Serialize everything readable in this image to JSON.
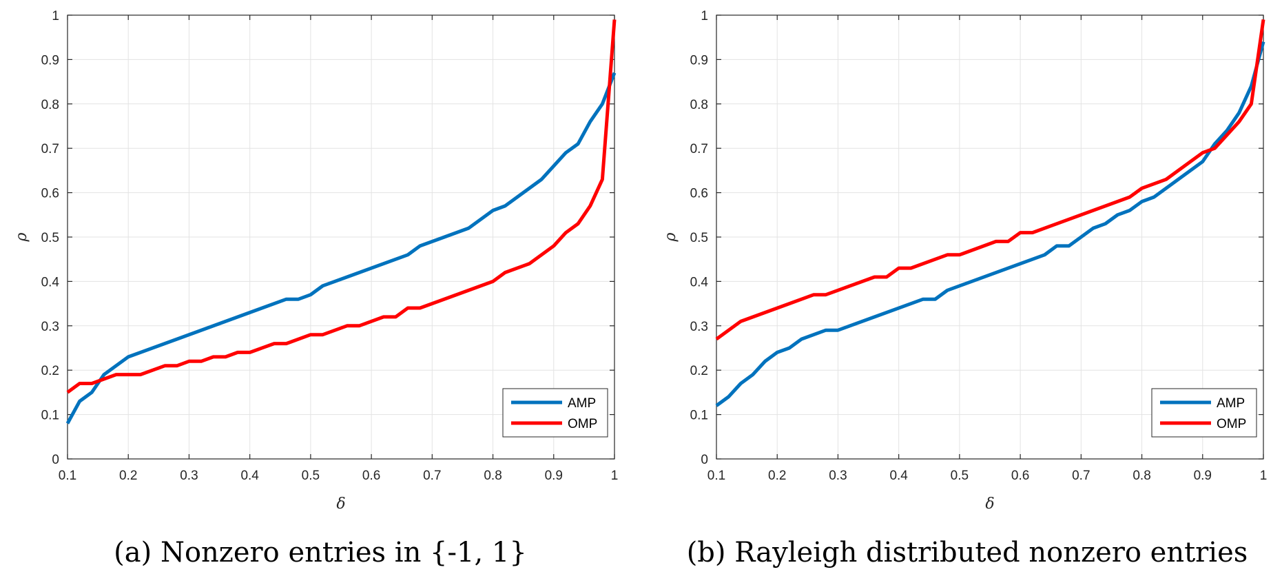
{
  "chart_data": [
    {
      "type": "line",
      "caption": "(a) Nonzero entries in {-1, 1}",
      "xlabel": "δ",
      "ylabel": "ρ",
      "xlim": [
        0.1,
        1
      ],
      "ylim": [
        0,
        1
      ],
      "xticks": [
        "0.1",
        "0.2",
        "0.3",
        "0.4",
        "0.5",
        "0.6",
        "0.7",
        "0.8",
        "0.9",
        "1"
      ],
      "yticks": [
        "0",
        "0.1",
        "0.2",
        "0.3",
        "0.4",
        "0.5",
        "0.6",
        "0.7",
        "0.8",
        "0.9",
        "1"
      ],
      "grid": true,
      "legend_position": "bottom-right",
      "series": [
        {
          "name": "AMP",
          "color": "#0072BD",
          "points": [
            [
              0.1,
              0.08
            ],
            [
              0.12,
              0.13
            ],
            [
              0.14,
              0.15
            ],
            [
              0.16,
              0.19
            ],
            [
              0.2,
              0.23
            ],
            [
              0.46,
              0.36
            ],
            [
              0.48,
              0.36
            ],
            [
              0.5,
              0.37
            ],
            [
              0.52,
              0.39
            ],
            [
              0.66,
              0.46
            ],
            [
              0.68,
              0.48
            ],
            [
              0.76,
              0.52
            ],
            [
              0.8,
              0.56
            ],
            [
              0.82,
              0.57
            ],
            [
              0.88,
              0.63
            ],
            [
              0.92,
              0.69
            ],
            [
              0.94,
              0.71
            ],
            [
              0.96,
              0.76
            ],
            [
              0.98,
              0.8
            ],
            [
              1.0,
              0.87
            ]
          ]
        },
        {
          "name": "OMP",
          "color": "#FF0000",
          "points": [
            [
              0.1,
              0.15
            ],
            [
              0.12,
              0.17
            ],
            [
              0.14,
              0.17
            ],
            [
              0.18,
              0.19
            ],
            [
              0.22,
              0.19
            ],
            [
              0.26,
              0.21
            ],
            [
              0.28,
              0.21
            ],
            [
              0.3,
              0.22
            ],
            [
              0.32,
              0.22
            ],
            [
              0.34,
              0.23
            ],
            [
              0.36,
              0.23
            ],
            [
              0.38,
              0.24
            ],
            [
              0.4,
              0.24
            ],
            [
              0.44,
              0.26
            ],
            [
              0.46,
              0.26
            ],
            [
              0.5,
              0.28
            ],
            [
              0.52,
              0.28
            ],
            [
              0.56,
              0.3
            ],
            [
              0.58,
              0.3
            ],
            [
              0.62,
              0.32
            ],
            [
              0.64,
              0.32
            ],
            [
              0.66,
              0.34
            ],
            [
              0.68,
              0.34
            ],
            [
              0.8,
              0.4
            ],
            [
              0.82,
              0.42
            ],
            [
              0.86,
              0.44
            ],
            [
              0.9,
              0.48
            ],
            [
              0.92,
              0.51
            ],
            [
              0.94,
              0.53
            ],
            [
              0.96,
              0.57
            ],
            [
              0.98,
              0.63
            ],
            [
              1.0,
              0.99
            ]
          ]
        }
      ]
    },
    {
      "type": "line",
      "caption": "(b) Rayleigh distributed nonzero entries",
      "xlabel": "δ",
      "ylabel": "ρ",
      "xlim": [
        0.1,
        1
      ],
      "ylim": [
        0,
        1
      ],
      "xticks": [
        "0.1",
        "0.2",
        "0.3",
        "0.4",
        "0.5",
        "0.6",
        "0.7",
        "0.8",
        "0.9",
        "1"
      ],
      "yticks": [
        "0",
        "0.1",
        "0.2",
        "0.3",
        "0.4",
        "0.5",
        "0.6",
        "0.7",
        "0.8",
        "0.9",
        "1"
      ],
      "grid": true,
      "legend_position": "bottom-right",
      "series": [
        {
          "name": "AMP",
          "color": "#0072BD",
          "points": [
            [
              0.1,
              0.12
            ],
            [
              0.12,
              0.14
            ],
            [
              0.14,
              0.17
            ],
            [
              0.16,
              0.19
            ],
            [
              0.18,
              0.22
            ],
            [
              0.2,
              0.24
            ],
            [
              0.22,
              0.25
            ],
            [
              0.24,
              0.27
            ],
            [
              0.28,
              0.29
            ],
            [
              0.3,
              0.29
            ],
            [
              0.44,
              0.36
            ],
            [
              0.46,
              0.36
            ],
            [
              0.48,
              0.38
            ],
            [
              0.64,
              0.46
            ],
            [
              0.66,
              0.48
            ],
            [
              0.68,
              0.48
            ],
            [
              0.72,
              0.52
            ],
            [
              0.74,
              0.53
            ],
            [
              0.76,
              0.55
            ],
            [
              0.78,
              0.56
            ],
            [
              0.8,
              0.58
            ],
            [
              0.82,
              0.59
            ],
            [
              0.9,
              0.67
            ],
            [
              0.92,
              0.71
            ],
            [
              0.94,
              0.74
            ],
            [
              0.96,
              0.78
            ],
            [
              0.98,
              0.84
            ],
            [
              1.0,
              0.94
            ]
          ]
        },
        {
          "name": "OMP",
          "color": "#FF0000",
          "points": [
            [
              0.1,
              0.27
            ],
            [
              0.14,
              0.31
            ],
            [
              0.26,
              0.37
            ],
            [
              0.28,
              0.37
            ],
            [
              0.36,
              0.41
            ],
            [
              0.38,
              0.41
            ],
            [
              0.4,
              0.43
            ],
            [
              0.42,
              0.43
            ],
            [
              0.48,
              0.46
            ],
            [
              0.5,
              0.46
            ],
            [
              0.56,
              0.49
            ],
            [
              0.58,
              0.49
            ],
            [
              0.6,
              0.51
            ],
            [
              0.62,
              0.51
            ],
            [
              0.78,
              0.59
            ],
            [
              0.8,
              0.61
            ],
            [
              0.84,
              0.63
            ],
            [
              0.9,
              0.69
            ],
            [
              0.92,
              0.7
            ],
            [
              0.96,
              0.76
            ],
            [
              0.98,
              0.8
            ],
            [
              1.0,
              0.99
            ]
          ]
        }
      ]
    }
  ]
}
